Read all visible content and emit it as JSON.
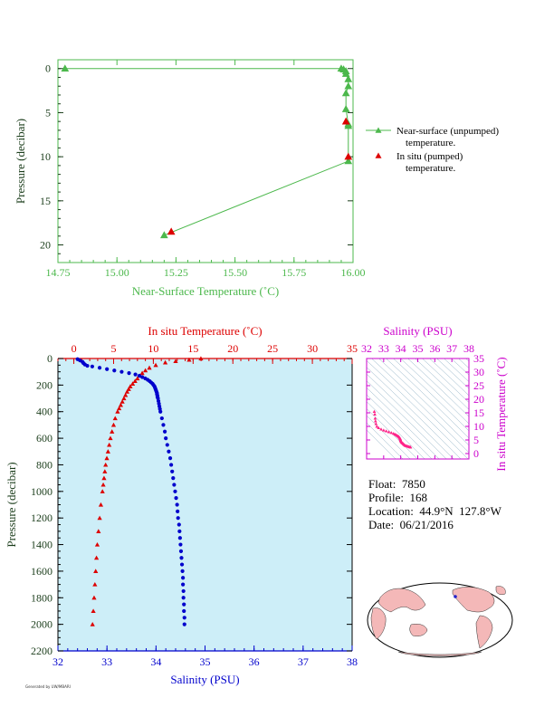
{
  "colors": {
    "near_surface": "#4cb84c",
    "in_situ_temp": "#dd0000",
    "salinity": "#0000cc",
    "ts_axis": "#cc00cc",
    "ts_points": "#ff2288",
    "profile_bg": "#cdeef8",
    "axis_dark": "#1b3d1b"
  },
  "float_info": {
    "float": "Float:  7850",
    "profile": "Profile:  168",
    "location": "Location:  44.9°N  127.8°W",
    "date": "Date:  06/21/2016"
  },
  "footnote": "Generated by UW/MBARI",
  "chart_data": [
    {
      "id": "near_surface_temperature",
      "type": "line",
      "xlabel": "Near-Surface Temperature (˚C)",
      "ylabel": "Pressure (decibar)",
      "xlim": [
        14.75,
        16.0
      ],
      "ylim": [
        22,
        -1
      ],
      "xticks": [
        "14.75",
        "15.00",
        "15.25",
        "15.50",
        "15.75",
        "16.00"
      ],
      "yticks": [
        "0",
        "5",
        "10",
        "15",
        "20"
      ],
      "series": [
        {
          "name": "Near-surface (unpumped) temperature.",
          "marker": "triangle-open",
          "x": [
            14.78,
            15.95,
            15.96,
            15.97,
            15.97,
            15.98,
            15.98,
            15.97,
            15.97,
            15.98,
            15.98,
            15.98,
            15.2
          ],
          "y": [
            0,
            0,
            0.1,
            0.3,
            0.6,
            1.2,
            2.0,
            2.8,
            4.6,
            6.3,
            6.5,
            10.5,
            18.9
          ]
        },
        {
          "name": "In situ (pumped) temperature.",
          "marker": "triangle-filled",
          "x": [
            15.97,
            15.98,
            15.23
          ],
          "y": [
            6.0,
            10.0,
            18.5
          ]
        }
      ]
    },
    {
      "id": "profile",
      "type": "line",
      "xlabel": "Salinity (PSU)",
      "xlabel_top": "In situ Temperature (˚C)",
      "ylabel": "Pressure (decibar)",
      "xlim": [
        32,
        38
      ],
      "xlim_top": [
        -2,
        35
      ],
      "ylim": [
        2200,
        0
      ],
      "xticks": [
        "32",
        "33",
        "34",
        "35",
        "36",
        "37",
        "38"
      ],
      "xticks_top": [
        "0",
        "5",
        "10",
        "15",
        "20",
        "25",
        "30",
        "35"
      ],
      "yticks": [
        "0",
        "200",
        "400",
        "600",
        "800",
        "1000",
        "1200",
        "1400",
        "1600",
        "1800",
        "2000",
        "2200"
      ],
      "temperature": {
        "name": "In situ Temperature",
        "p": [
          0,
          10,
          20,
          30,
          50,
          70,
          90,
          110,
          130,
          150,
          170,
          190,
          210,
          230,
          250,
          275,
          300,
          325,
          350,
          375,
          400,
          450,
          500,
          550,
          600,
          650,
          700,
          750,
          800,
          850,
          900,
          950,
          1000,
          1100,
          1200,
          1300,
          1400,
          1500,
          1600,
          1700,
          1800,
          1900,
          2000
        ],
        "t": [
          15.98,
          14.5,
          12.8,
          11.5,
          10.3,
          9.5,
          9.0,
          8.6,
          8.3,
          8.0,
          7.7,
          7.4,
          7.1,
          6.9,
          6.7,
          6.5,
          6.3,
          6.1,
          5.9,
          5.7,
          5.5,
          5.2,
          5.0,
          4.8,
          4.6,
          4.45,
          4.3,
          4.15,
          4.0,
          3.9,
          3.8,
          3.7,
          3.6,
          3.4,
          3.25,
          3.1,
          2.95,
          2.85,
          2.75,
          2.65,
          2.55,
          2.45,
          2.35
        ]
      },
      "salinity": {
        "name": "Salinity",
        "p": [
          5,
          15,
          25,
          35,
          45,
          55,
          60,
          70,
          80,
          90,
          100,
          110,
          120,
          130,
          140,
          150,
          160,
          170,
          180,
          190,
          200,
          210,
          220,
          230,
          240,
          250,
          260,
          270,
          280,
          290,
          300,
          320,
          340,
          360,
          380,
          400,
          450,
          500,
          550,
          600,
          650,
          700,
          750,
          800,
          850,
          900,
          950,
          1000,
          1050,
          1100,
          1150,
          1200,
          1250,
          1300,
          1350,
          1400,
          1450,
          1500,
          1550,
          1600,
          1650,
          1700,
          1750,
          1800,
          1850,
          1900,
          1950,
          2000
        ],
        "s": [
          32.4,
          32.45,
          32.5,
          32.52,
          32.55,
          32.6,
          32.7,
          32.85,
          33.0,
          33.15,
          33.3,
          33.45,
          33.58,
          33.66,
          33.72,
          33.78,
          33.83,
          33.87,
          33.9,
          33.93,
          33.95,
          33.97,
          33.98,
          33.99,
          34.0,
          34.01,
          34.02,
          34.02,
          34.03,
          34.03,
          34.04,
          34.05,
          34.06,
          34.07,
          34.08,
          34.09,
          34.12,
          34.15,
          34.18,
          34.2,
          34.23,
          34.26,
          34.29,
          34.31,
          34.33,
          34.35,
          34.37,
          34.39,
          34.41,
          34.43,
          34.44,
          34.45,
          34.47,
          34.48,
          34.49,
          34.5,
          34.51,
          34.52,
          34.53,
          34.54,
          34.55,
          34.55,
          34.56,
          34.56,
          34.57,
          34.57,
          34.58,
          34.58
        ]
      }
    },
    {
      "id": "ts_diagram",
      "type": "scatter",
      "xlabel": "Salinity (PSU)",
      "ylabel": "In situ Temperature (˚C)",
      "xlim": [
        32,
        38
      ],
      "ylim": [
        -2,
        35
      ],
      "xticks": [
        "32",
        "33",
        "34",
        "35",
        "36",
        "37",
        "38"
      ],
      "yticks": [
        "0",
        "5",
        "10",
        "15",
        "20",
        "25",
        "30",
        "35"
      ],
      "points_s": [
        32.45,
        32.48,
        32.5,
        32.52,
        32.55,
        32.6,
        32.7,
        32.85,
        33.0,
        33.15,
        33.3,
        33.45,
        33.58,
        33.66,
        33.72,
        33.78,
        33.83,
        33.87,
        33.9,
        33.93,
        33.95,
        33.97,
        33.98,
        33.99,
        34.0,
        34.01,
        34.03,
        34.05,
        34.08,
        34.12,
        34.15,
        34.18,
        34.22,
        34.26,
        34.3,
        34.35,
        34.4,
        34.45,
        34.5,
        34.55,
        34.58
      ],
      "points_t": [
        15.5,
        14.5,
        13.0,
        12.0,
        11.0,
        10.0,
        9.5,
        9.0,
        8.6,
        8.3,
        8.0,
        7.7,
        7.4,
        7.1,
        6.9,
        6.7,
        6.5,
        6.3,
        6.1,
        5.9,
        5.7,
        5.5,
        5.3,
        5.0,
        4.8,
        4.6,
        4.4,
        4.2,
        4.0,
        3.8,
        3.6,
        3.4,
        3.2,
        3.0,
        2.9,
        2.8,
        2.7,
        2.6,
        2.5,
        2.4,
        2.35
      ]
    }
  ]
}
